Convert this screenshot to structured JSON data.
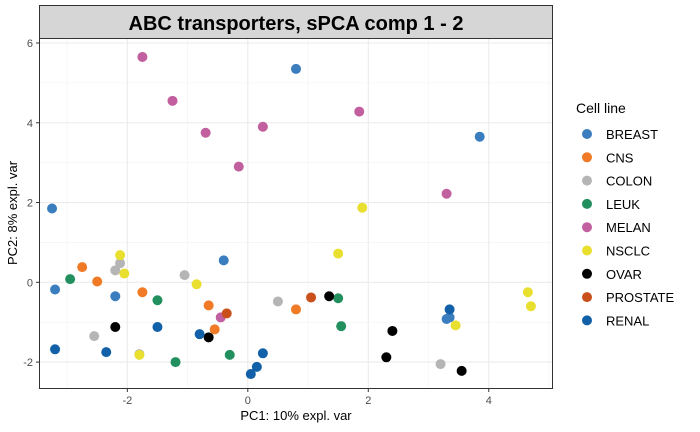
{
  "chart_data": {
    "type": "scatter",
    "title": "ABC transporters, sPCA comp 1 - 2",
    "xlabel": "PC1: 10% expl. var",
    "ylabel": "PC2: 8% expl. var",
    "xlim": [
      -3.45,
      5.05
    ],
    "ylim": [
      -2.65,
      6.1
    ],
    "xticks": [
      -2,
      0,
      2,
      4
    ],
    "yticks": [
      -2,
      0,
      2,
      4,
      6
    ],
    "grid": true,
    "legend": {
      "title": "Cell line",
      "position": "right"
    },
    "series": [
      {
        "name": "BREAST",
        "color": "#3a7ebf",
        "points": [
          [
            0.8,
            5.35
          ],
          [
            3.85,
            3.65
          ],
          [
            -3.25,
            1.85
          ],
          [
            -3.2,
            -0.18
          ],
          [
            -2.2,
            -0.35
          ],
          [
            3.3,
            -0.92
          ],
          [
            3.35,
            -0.88
          ],
          [
            -0.4,
            0.55
          ]
        ]
      },
      {
        "name": "CNS",
        "color": "#f07a25",
        "points": [
          [
            -2.75,
            0.38
          ],
          [
            -2.5,
            0.02
          ],
          [
            -1.75,
            -0.25
          ],
          [
            -0.65,
            -0.58
          ],
          [
            -0.55,
            -1.18
          ],
          [
            0.8,
            -0.68
          ]
        ]
      },
      {
        "name": "COLON",
        "color": "#b5b5b5",
        "points": [
          [
            -2.2,
            0.3
          ],
          [
            -2.12,
            0.48
          ],
          [
            -1.05,
            0.18
          ],
          [
            -2.55,
            -1.35
          ],
          [
            -1.8,
            -1.8
          ],
          [
            0.5,
            -0.48
          ],
          [
            3.2,
            -2.05
          ]
        ]
      },
      {
        "name": "LEUK",
        "color": "#21905e",
        "points": [
          [
            -2.95,
            0.08
          ],
          [
            -1.5,
            -0.45
          ],
          [
            -1.2,
            -2.0
          ],
          [
            -0.3,
            -1.82
          ],
          [
            1.5,
            -0.4
          ],
          [
            1.55,
            -1.1
          ]
        ]
      },
      {
        "name": "MELAN",
        "color": "#c25f9e",
        "points": [
          [
            -1.75,
            5.65
          ],
          [
            -1.25,
            4.55
          ],
          [
            -0.7,
            3.75
          ],
          [
            -0.15,
            2.9
          ],
          [
            0.25,
            3.9
          ],
          [
            1.85,
            4.28
          ],
          [
            3.3,
            2.22
          ],
          [
            -0.45,
            -0.88
          ]
        ]
      },
      {
        "name": "NSCLC",
        "color": "#e8df2e",
        "points": [
          [
            -2.12,
            0.68
          ],
          [
            -2.05,
            0.22
          ],
          [
            -0.85,
            -0.05
          ],
          [
            1.5,
            0.72
          ],
          [
            1.9,
            1.87
          ],
          [
            -1.8,
            -1.82
          ],
          [
            3.45,
            -1.08
          ],
          [
            4.65,
            -0.25
          ],
          [
            4.7,
            -0.6
          ]
        ]
      },
      {
        "name": "OVAR",
        "color": "#000000",
        "points": [
          [
            -2.2,
            -1.12
          ],
          [
            -0.65,
            -1.38
          ],
          [
            1.35,
            -0.35
          ],
          [
            2.4,
            -1.22
          ],
          [
            2.3,
            -1.88
          ],
          [
            3.55,
            -2.22
          ]
        ]
      },
      {
        "name": "PROSTATE",
        "color": "#c9501b",
        "points": [
          [
            -0.35,
            -0.78
          ],
          [
            1.05,
            -0.38
          ]
        ]
      },
      {
        "name": "RENAL",
        "color": "#1160a8",
        "points": [
          [
            -3.2,
            -1.68
          ],
          [
            -2.35,
            -1.75
          ],
          [
            -1.5,
            -1.12
          ],
          [
            -0.8,
            -1.3
          ],
          [
            0.25,
            -1.78
          ],
          [
            0.15,
            -2.12
          ],
          [
            0.05,
            -2.3
          ],
          [
            3.35,
            -0.68
          ]
        ]
      }
    ]
  }
}
